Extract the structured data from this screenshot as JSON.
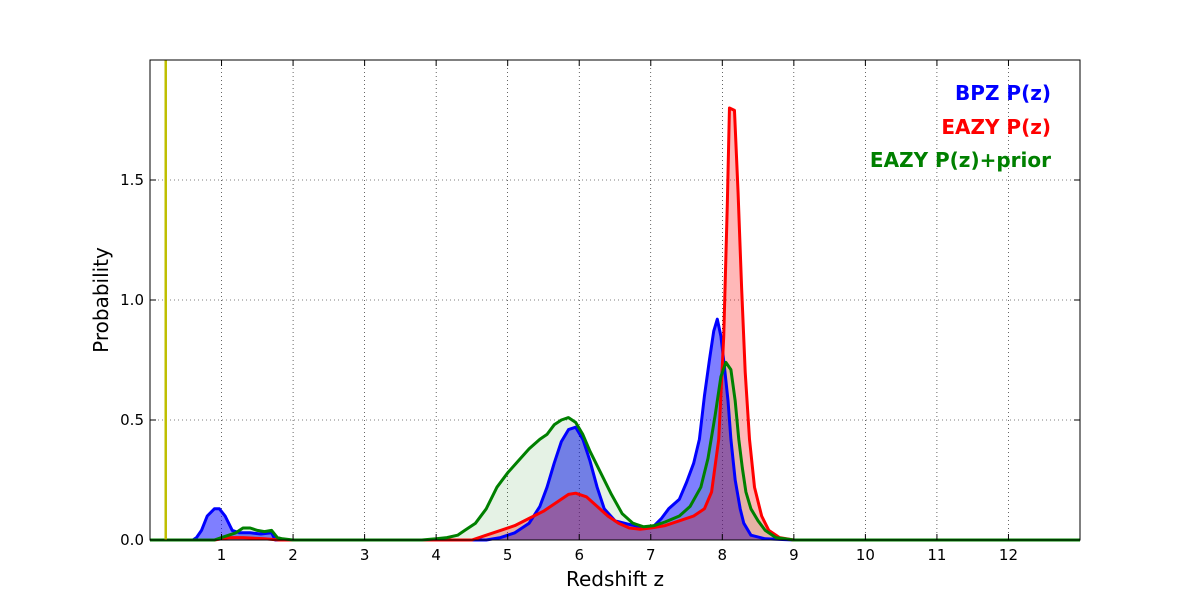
{
  "chart_data": {
    "type": "area",
    "xlabel": "Redshift z",
    "ylabel": "Probability",
    "xlim": [
      0,
      13
    ],
    "ylim": [
      0,
      2.0
    ],
    "x_ticks": [
      1,
      2,
      3,
      4,
      5,
      6,
      7,
      8,
      9,
      10,
      11,
      12
    ],
    "x_tick_labels": [
      "1",
      "2",
      "3",
      "4",
      "5",
      "6",
      "7",
      "8",
      "9",
      "10",
      "11",
      "12"
    ],
    "y_ticks": [
      0.0,
      0.5,
      1.0,
      1.5
    ],
    "y_tick_labels": [
      "0.0",
      "0.5",
      "1.0",
      "1.5"
    ],
    "grid": true,
    "legend_position": "top-right",
    "vertical_line": {
      "x": 0.22,
      "color": "#bfbf00"
    },
    "series": [
      {
        "name": "BPZ P(z)",
        "color": "#0000ff",
        "fill": "#0000ff",
        "fill_opacity": 0.5,
        "points": [
          [
            0,
            0
          ],
          [
            0.6,
            0
          ],
          [
            0.65,
            0.01
          ],
          [
            0.72,
            0.04
          ],
          [
            0.8,
            0.1
          ],
          [
            0.9,
            0.13
          ],
          [
            0.97,
            0.13
          ],
          [
            1.05,
            0.1
          ],
          [
            1.15,
            0.04
          ],
          [
            1.25,
            0.03
          ],
          [
            1.4,
            0.03
          ],
          [
            1.55,
            0.025
          ],
          [
            1.7,
            0.03
          ],
          [
            1.75,
            0
          ],
          [
            4.7,
            0
          ],
          [
            4.9,
            0.01
          ],
          [
            5.1,
            0.03
          ],
          [
            5.3,
            0.07
          ],
          [
            5.45,
            0.14
          ],
          [
            5.55,
            0.22
          ],
          [
            5.65,
            0.32
          ],
          [
            5.75,
            0.41
          ],
          [
            5.85,
            0.46
          ],
          [
            5.95,
            0.47
          ],
          [
            6.05,
            0.42
          ],
          [
            6.15,
            0.33
          ],
          [
            6.25,
            0.22
          ],
          [
            6.35,
            0.13
          ],
          [
            6.5,
            0.08
          ],
          [
            6.7,
            0.065
          ],
          [
            6.85,
            0.055
          ],
          [
            6.95,
            0.05
          ],
          [
            7.05,
            0.06
          ],
          [
            7.15,
            0.09
          ],
          [
            7.25,
            0.13
          ],
          [
            7.4,
            0.17
          ],
          [
            7.5,
            0.24
          ],
          [
            7.6,
            0.32
          ],
          [
            7.68,
            0.42
          ],
          [
            7.75,
            0.6
          ],
          [
            7.82,
            0.75
          ],
          [
            7.88,
            0.87
          ],
          [
            7.93,
            0.92
          ],
          [
            7.98,
            0.85
          ],
          [
            8.03,
            0.72
          ],
          [
            8.08,
            0.58
          ],
          [
            8.12,
            0.42
          ],
          [
            8.18,
            0.25
          ],
          [
            8.25,
            0.13
          ],
          [
            8.3,
            0.07
          ],
          [
            8.4,
            0.02
          ],
          [
            8.6,
            0.005
          ],
          [
            9.0,
            0
          ],
          [
            13,
            0
          ]
        ]
      },
      {
        "name": "EAZY P(z)",
        "color": "#ff0000",
        "fill": "#ff0000",
        "fill_opacity": 0.28,
        "points": [
          [
            0,
            0
          ],
          [
            0.9,
            0
          ],
          [
            1.1,
            0.01
          ],
          [
            1.3,
            0.01
          ],
          [
            1.6,
            0.005
          ],
          [
            1.8,
            0
          ],
          [
            4.5,
            0
          ],
          [
            4.7,
            0.02
          ],
          [
            4.9,
            0.04
          ],
          [
            5.1,
            0.06
          ],
          [
            5.3,
            0.09
          ],
          [
            5.5,
            0.12
          ],
          [
            5.7,
            0.16
          ],
          [
            5.85,
            0.19
          ],
          [
            5.95,
            0.195
          ],
          [
            6.1,
            0.18
          ],
          [
            6.25,
            0.14
          ],
          [
            6.4,
            0.1
          ],
          [
            6.55,
            0.07
          ],
          [
            6.7,
            0.05
          ],
          [
            6.85,
            0.045
          ],
          [
            7.0,
            0.05
          ],
          [
            7.2,
            0.06
          ],
          [
            7.4,
            0.08
          ],
          [
            7.6,
            0.1
          ],
          [
            7.75,
            0.13
          ],
          [
            7.85,
            0.2
          ],
          [
            7.95,
            0.42
          ],
          [
            8.02,
            0.85
          ],
          [
            8.07,
            1.4
          ],
          [
            8.1,
            1.8
          ],
          [
            8.17,
            1.79
          ],
          [
            8.22,
            1.45
          ],
          [
            8.27,
            1.05
          ],
          [
            8.32,
            0.7
          ],
          [
            8.38,
            0.42
          ],
          [
            8.45,
            0.22
          ],
          [
            8.55,
            0.1
          ],
          [
            8.65,
            0.04
          ],
          [
            8.8,
            0.01
          ],
          [
            9.0,
            0
          ],
          [
            13,
            0
          ]
        ]
      },
      {
        "name": "EAZY P(z)+prior",
        "color": "#008000",
        "fill": "#008000",
        "fill_opacity": 0.1,
        "points": [
          [
            0,
            0
          ],
          [
            0.9,
            0
          ],
          [
            1.0,
            0.01
          ],
          [
            1.1,
            0.02
          ],
          [
            1.2,
            0.03
          ],
          [
            1.3,
            0.05
          ],
          [
            1.4,
            0.05
          ],
          [
            1.5,
            0.04
          ],
          [
            1.6,
            0.035
          ],
          [
            1.7,
            0.04
          ],
          [
            1.78,
            0.01
          ],
          [
            1.85,
            0.005
          ],
          [
            2.0,
            0
          ],
          [
            3.8,
            0
          ],
          [
            4.0,
            0.005
          ],
          [
            4.15,
            0.01
          ],
          [
            4.3,
            0.02
          ],
          [
            4.4,
            0.04
          ],
          [
            4.55,
            0.07
          ],
          [
            4.7,
            0.13
          ],
          [
            4.85,
            0.22
          ],
          [
            5.0,
            0.28
          ],
          [
            5.15,
            0.33
          ],
          [
            5.3,
            0.38
          ],
          [
            5.45,
            0.42
          ],
          [
            5.55,
            0.44
          ],
          [
            5.65,
            0.48
          ],
          [
            5.75,
            0.5
          ],
          [
            5.85,
            0.51
          ],
          [
            5.95,
            0.49
          ],
          [
            6.05,
            0.44
          ],
          [
            6.15,
            0.37
          ],
          [
            6.3,
            0.28
          ],
          [
            6.45,
            0.19
          ],
          [
            6.6,
            0.11
          ],
          [
            6.75,
            0.07
          ],
          [
            6.9,
            0.055
          ],
          [
            7.05,
            0.06
          ],
          [
            7.2,
            0.075
          ],
          [
            7.4,
            0.1
          ],
          [
            7.55,
            0.14
          ],
          [
            7.7,
            0.22
          ],
          [
            7.8,
            0.34
          ],
          [
            7.9,
            0.52
          ],
          [
            7.98,
            0.68
          ],
          [
            8.05,
            0.74
          ],
          [
            8.12,
            0.71
          ],
          [
            8.18,
            0.58
          ],
          [
            8.23,
            0.42
          ],
          [
            8.28,
            0.3
          ],
          [
            8.33,
            0.2
          ],
          [
            8.4,
            0.13
          ],
          [
            8.5,
            0.08
          ],
          [
            8.6,
            0.04
          ],
          [
            8.75,
            0.01
          ],
          [
            9.0,
            0
          ],
          [
            13,
            0
          ]
        ]
      }
    ]
  }
}
